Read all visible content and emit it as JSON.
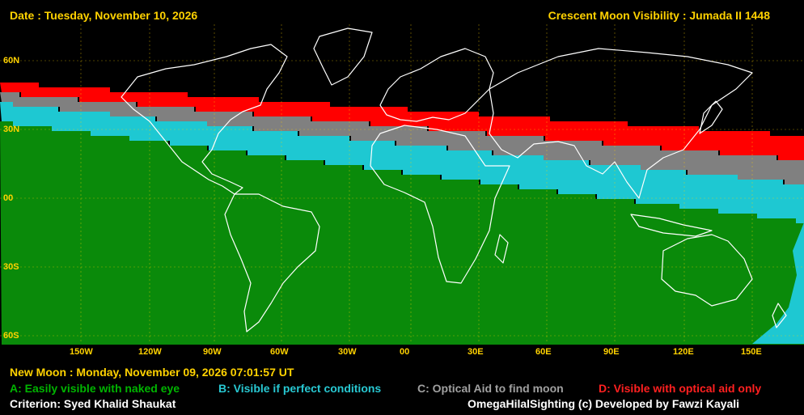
{
  "header": {
    "date": "Date : Tuesday, November 10, 2026",
    "title": "Crescent Moon Visibility : Jumada II  1448"
  },
  "lat_labels": [
    "60N",
    "30N",
    "00",
    "30S",
    "60S"
  ],
  "lon_labels": [
    "150W",
    "120W",
    "90W",
    "60W",
    "30W",
    "00",
    "30E",
    "60E",
    "90E",
    "120E",
    "150E"
  ],
  "footer": {
    "new_moon": "New Moon : Monday, November 09, 2026  07:01:57  UT",
    "legend": {
      "a": "A: Easily visible with naked eye",
      "b": "B: Visible if perfect conditions",
      "c": "C: Optical Aid to find moon",
      "d": "D: Visible with optical aid only"
    },
    "criterion": "Criterion: Syed Khalid Shaukat",
    "credit": "OmegaHilalSighting  (c)  Developed by Fawzi Kayali"
  },
  "colors": {
    "zone_a": "#0a8a0a",
    "zone_b": "#1ec8d2",
    "zone_c": "#808080",
    "zone_d": "#ff0000",
    "background": "#000000",
    "coast": "#ffffff",
    "label": "#ffd200"
  }
}
